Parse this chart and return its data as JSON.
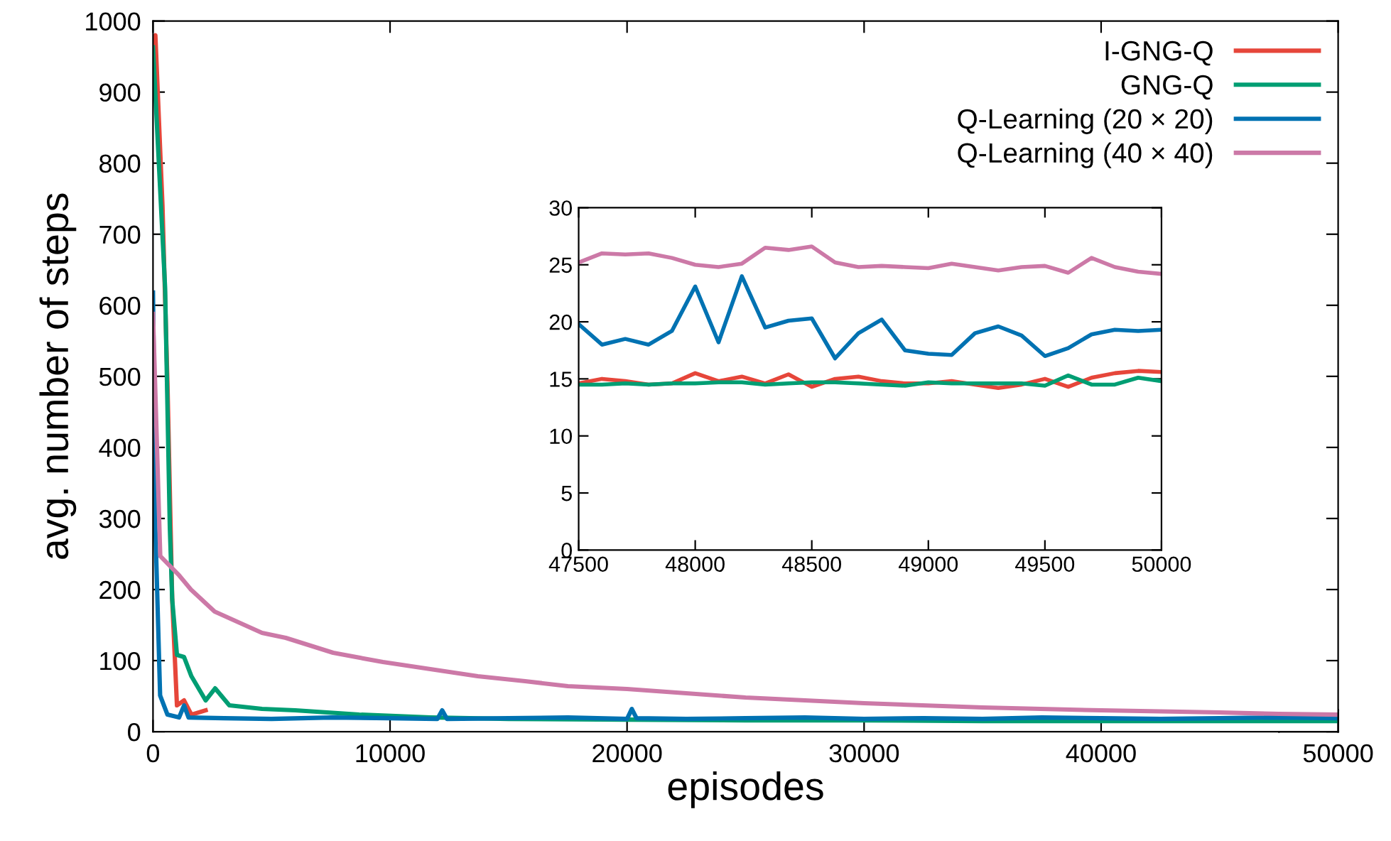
{
  "chart_data": [
    {
      "type": "line",
      "xlabel": "episodes",
      "ylabel": "avg. number of steps",
      "xlim": [
        0,
        50000
      ],
      "ylim": [
        0,
        1000
      ],
      "xticks": [
        0,
        10000,
        20000,
        30000,
        40000,
        50000
      ],
      "yticks": [
        0,
        100,
        200,
        300,
        400,
        500,
        600,
        700,
        800,
        900,
        1000
      ],
      "grid": false,
      "legend": "top right",
      "line_style": "solid",
      "marker": "none",
      "series": [
        {
          "name": "I-GNG-Q",
          "color": "#e6463a",
          "x": [
            0,
            100,
            400,
            610,
            810,
            1010,
            1310,
            1620,
            2220
          ],
          "values": [
            970,
            980,
            740,
            490,
            186,
            37,
            44,
            24,
            30
          ]
        },
        {
          "name": "GNG-Q",
          "color": "#009e73",
          "x": [
            0,
            510,
            710,
            810,
            1010,
            1310,
            1620,
            2220,
            2620,
            3220,
            4600,
            6000,
            8700,
            11700,
            15000,
            20000,
            25000,
            30000,
            35000,
            40000,
            45000,
            50000
          ],
          "values": [
            963,
            625,
            287,
            186,
            108,
            105,
            78,
            44,
            61,
            37,
            32,
            30,
            24,
            20,
            18,
            17,
            16,
            16,
            15,
            15,
            15,
            15
          ]
        },
        {
          "name": "Q-Learning (20 × 20)",
          "color": "#0072b2",
          "x": [
            0,
            100,
            300,
            610,
            1100,
            1310,
            1500,
            3000,
            5000,
            7500,
            10000,
            12000,
            12200,
            12400,
            15000,
            17500,
            20000,
            20200,
            20400,
            22500,
            25000,
            27500,
            30000,
            32500,
            35000,
            37500,
            40000,
            42500,
            45000,
            47500,
            50000
          ],
          "values": [
            618,
            287,
            51,
            24,
            20,
            37,
            20,
            19,
            18,
            20,
            19,
            18,
            30,
            18,
            19,
            20,
            18,
            32,
            19,
            18,
            19,
            20,
            18,
            19,
            18,
            20,
            19,
            18,
            19,
            20,
            19
          ]
        },
        {
          "name": "Q-Learning (40 × 40)",
          "color": "#cc79a7",
          "x": [
            0,
            306,
            1100,
            1600,
            2600,
            4600,
            5600,
            7600,
            9700,
            11700,
            13700,
            15700,
            17500,
            20000,
            25000,
            30000,
            35000,
            40000,
            45000,
            47500,
            50000
          ],
          "values": [
            588,
            247,
            220,
            200,
            169,
            139,
            132,
            111,
            98,
            88,
            78,
            71,
            64,
            60,
            48,
            40,
            34,
            30,
            27,
            25,
            24
          ]
        }
      ]
    },
    {
      "type": "line",
      "xlim": [
        47500,
        50000
      ],
      "ylim": [
        0,
        30
      ],
      "xticks": [
        47500,
        48000,
        48500,
        49000,
        49500,
        50000
      ],
      "yticks": [
        0,
        5,
        10,
        15,
        20,
        25,
        30
      ],
      "grid": false,
      "legend": false,
      "line_style": "solid",
      "marker": "none",
      "x": [
        47500,
        47600,
        47700,
        47800,
        47900,
        48000,
        48100,
        48200,
        48300,
        48400,
        48500,
        48600,
        48700,
        48800,
        48900,
        49000,
        49100,
        49200,
        49300,
        49400,
        49500,
        49600,
        49700,
        49800,
        49900,
        50000
      ],
      "series": [
        {
          "color": "#e6463a",
          "values": [
            14.6,
            15.0,
            14.8,
            14.5,
            14.6,
            15.5,
            14.8,
            15.2,
            14.6,
            15.4,
            14.3,
            15.0,
            15.2,
            14.8,
            14.6,
            14.6,
            14.8,
            14.5,
            14.2,
            14.5,
            15.0,
            14.3,
            15.1,
            15.5,
            15.7,
            15.6
          ]
        },
        {
          "color": "#009e73",
          "values": [
            14.5,
            14.5,
            14.6,
            14.5,
            14.6,
            14.6,
            14.7,
            14.7,
            14.5,
            14.6,
            14.7,
            14.7,
            14.6,
            14.5,
            14.4,
            14.7,
            14.6,
            14.6,
            14.6,
            14.6,
            14.4,
            15.3,
            14.5,
            14.5,
            15.1,
            14.8
          ]
        },
        {
          "color": "#0072b2",
          "values": [
            19.8,
            18.0,
            18.5,
            18.0,
            19.2,
            23.1,
            18.2,
            24.0,
            19.5,
            20.1,
            20.3,
            16.8,
            19.0,
            20.2,
            17.5,
            17.2,
            17.1,
            19.0,
            19.6,
            18.8,
            17.0,
            17.7,
            18.9,
            19.3,
            19.2,
            19.3
          ]
        },
        {
          "color": "#cc79a7",
          "values": [
            25.2,
            26.0,
            25.9,
            26.0,
            25.6,
            25.0,
            24.8,
            25.1,
            26.5,
            26.3,
            26.6,
            25.2,
            24.8,
            24.9,
            24.8,
            24.7,
            25.1,
            24.8,
            24.5,
            24.8,
            24.9,
            24.3,
            25.6,
            24.8,
            24.4,
            24.2
          ]
        }
      ]
    }
  ]
}
